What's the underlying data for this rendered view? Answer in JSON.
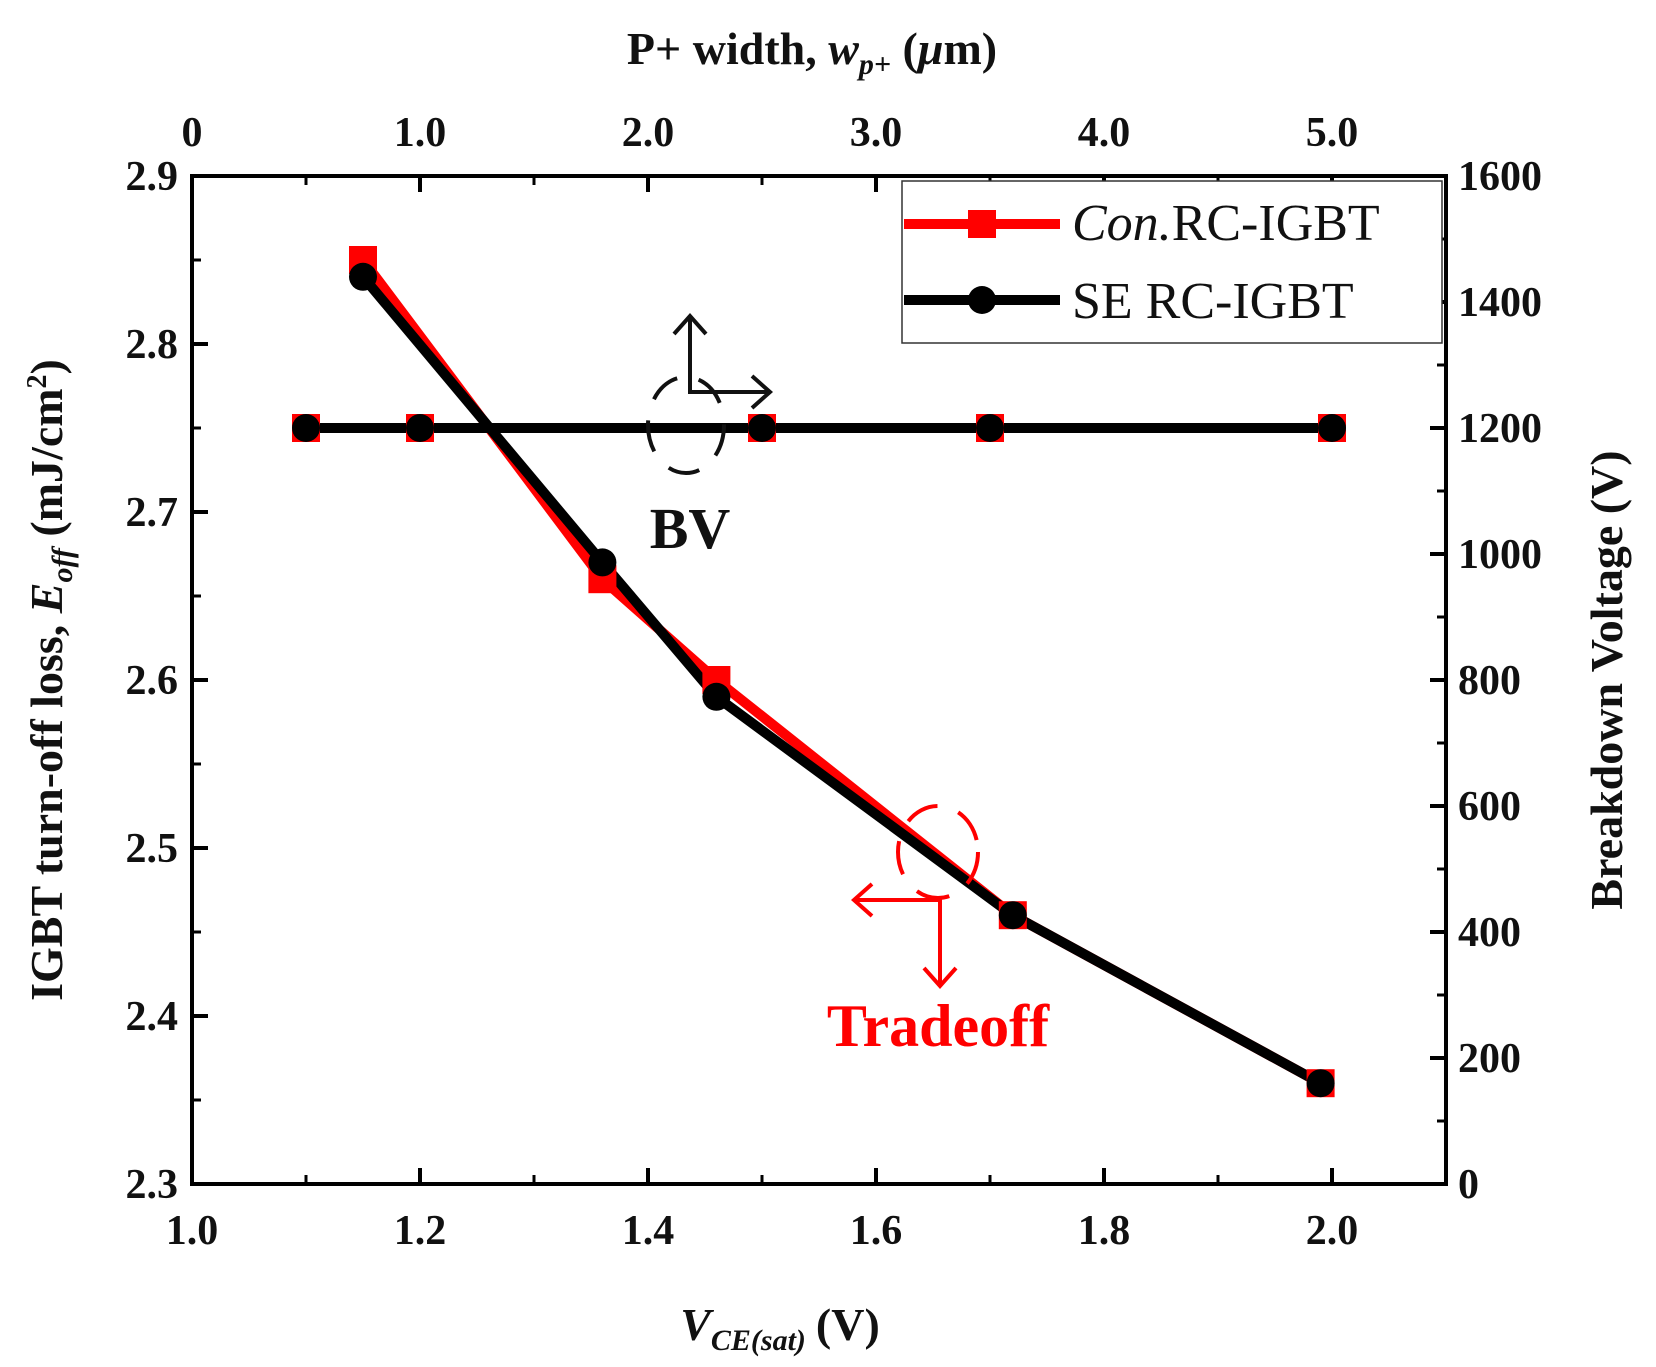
{
  "chart_data": {
    "type": "line",
    "x_axis": {
      "label_main": "V",
      "label_sub": "CE(sat)",
      "label_unit": "(V)",
      "min": 1.0,
      "max": 2.1,
      "ticks": [
        1.0,
        1.2,
        1.4,
        1.6,
        1.8,
        2.0
      ],
      "tick_labels": [
        "1.0",
        "1.2",
        "1.4",
        "1.6",
        "1.8",
        "2.0"
      ]
    },
    "x2_axis": {
      "label_main": "P+ width, ",
      "label_var": "w",
      "label_sub": "p+",
      "label_paren_open": " (",
      "label_mu": "μ",
      "label_unit": "m)",
      "tick_labels": [
        "0",
        "1.0",
        "2.0",
        "3.0",
        "4.0",
        "5.0"
      ],
      "tick_positions_x": [
        1.0,
        1.2,
        1.4,
        1.6,
        1.8,
        2.0
      ]
    },
    "y_axis": {
      "label_main": "IGBT turn-off loss, ",
      "label_var": "E",
      "label_sub": "off",
      "label_unit": " (mJ/cm",
      "label_sup": "2",
      "label_close": ")",
      "min": 2.3,
      "max": 2.9,
      "ticks": [
        2.3,
        2.4,
        2.5,
        2.6,
        2.7,
        2.8,
        2.9
      ],
      "tick_labels": [
        "2.3",
        "2.4",
        "2.5",
        "2.6",
        "2.7",
        "2.8",
        "2.9"
      ]
    },
    "y2_axis": {
      "label": "Breakdown Voltage (V)",
      "min": 0,
      "max": 1600,
      "ticks": [
        0,
        200,
        400,
        600,
        800,
        1000,
        1200,
        1400,
        1600
      ],
      "tick_labels": [
        "0",
        "200",
        "400",
        "600",
        "800",
        "1000",
        "1200",
        "1400",
        "1600"
      ]
    },
    "series": [
      {
        "name": "Tradeoff — Con. RC-IGBT",
        "axis": "left",
        "color": "#ff0000",
        "marker": "square",
        "x": [
          1.15,
          1.36,
          1.46,
          1.72,
          1.99
        ],
        "y": [
          2.85,
          2.66,
          2.6,
          2.46,
          2.36
        ]
      },
      {
        "name": "Tradeoff — SE RC-IGBT",
        "axis": "left",
        "color": "#000000",
        "marker": "circle",
        "x": [
          1.15,
          1.36,
          1.46,
          1.72,
          1.99
        ],
        "y": [
          2.84,
          2.67,
          2.59,
          2.46,
          2.36
        ]
      },
      {
        "name": "BV — Con. RC-IGBT",
        "axis": "right",
        "color": "#ff0000",
        "marker": "square",
        "x": [
          1.1,
          1.2,
          1.5,
          1.7,
          2.0
        ],
        "y": [
          1200,
          1200,
          1200,
          1200,
          1200
        ]
      },
      {
        "name": "BV — SE RC-IGBT",
        "axis": "right",
        "color": "#000000",
        "marker": "circle",
        "x": [
          1.1,
          1.2,
          1.5,
          1.7,
          2.0
        ],
        "y": [
          1200,
          1200,
          1200,
          1200,
          1200
        ]
      }
    ],
    "legend": {
      "position": "top-right",
      "entries": [
        {
          "italic": "Con.",
          "text": "RC-IGBT",
          "color": "#ff0000",
          "marker": "square"
        },
        {
          "italic": "",
          "text": "SE RC-IGBT",
          "color": "#000000",
          "marker": "circle"
        }
      ]
    },
    "annotations": [
      {
        "text": "BV",
        "color": "#111111",
        "points_to": "right-axis"
      },
      {
        "text": "Tradeoff",
        "color": "#ff0000",
        "points_to": "left-axis"
      }
    ]
  }
}
